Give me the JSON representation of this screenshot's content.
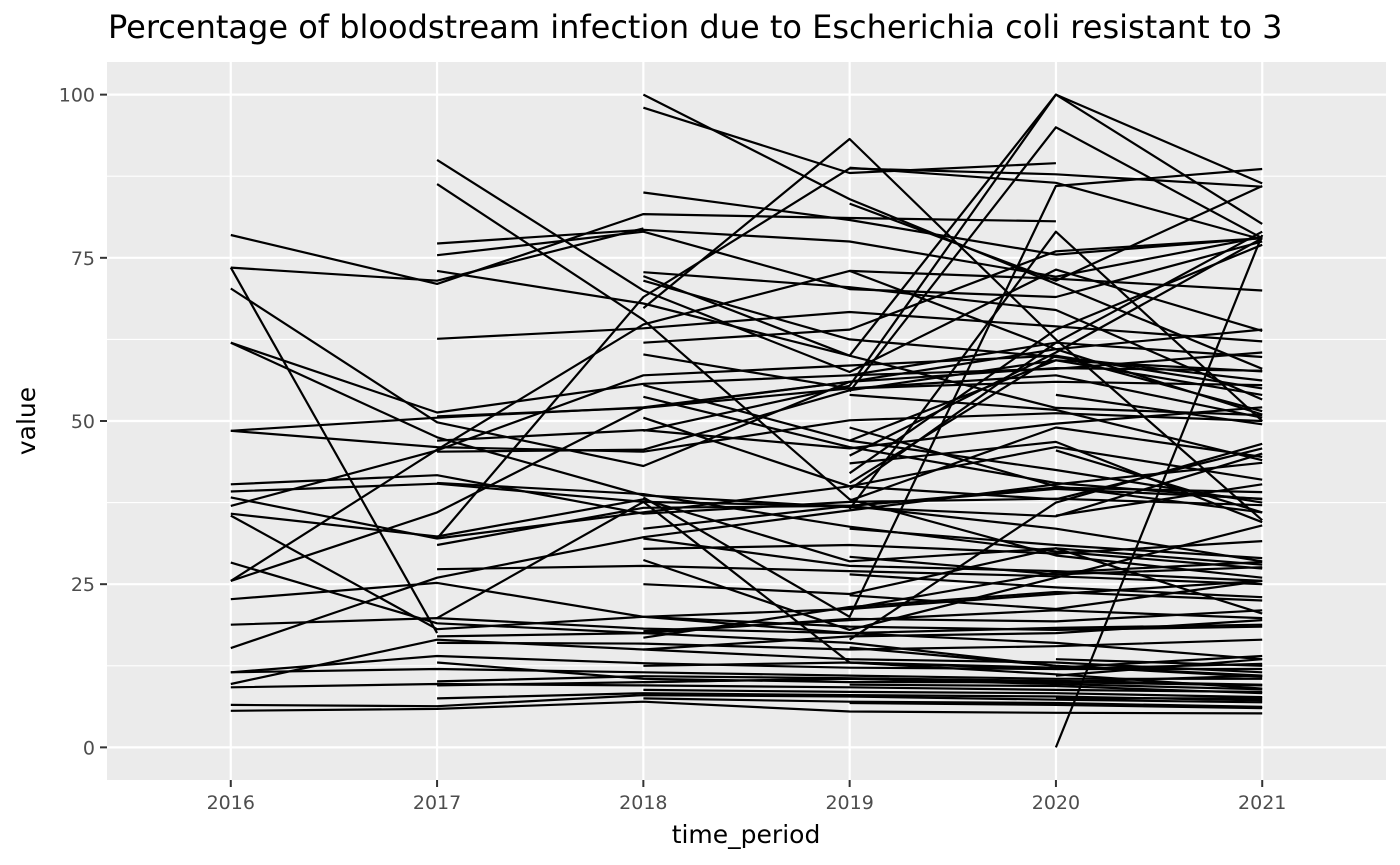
{
  "chart_data": {
    "type": "line",
    "title": "Percentage of bloodstream infection due to Escherichia coli resistant to 3",
    "xlabel": "time_period",
    "ylabel": "value",
    "x_ticks": [
      "2016",
      "2017",
      "2018",
      "2019",
      "2020",
      "2021"
    ],
    "y_ticks": [
      "0",
      "25",
      "50",
      "75",
      "100"
    ],
    "xlim": [
      2015.4,
      2021.6
    ],
    "ylim": [
      -5,
      105
    ],
    "grid": true,
    "legend": "none",
    "line_color": "#000000",
    "panel_background": "#ebebeb",
    "x": [
      2016,
      2017,
      2018,
      2019,
      2020,
      2021
    ],
    "series": [
      {
        "values": [
          78.5,
          71.0,
          81.7,
          81.1,
          80.6,
          null
        ]
      },
      {
        "values": [
          73.5,
          71.5,
          79.5,
          null,
          null,
          null
        ]
      },
      {
        "values": [
          73.5,
          17.5,
          null,
          null,
          null,
          null
        ]
      },
      {
        "values": [
          70.3,
          49.8,
          43.1,
          56.0,
          null,
          null
        ]
      },
      {
        "values": [
          62.0,
          51.3,
          55.7,
          57.0,
          62.0,
          59.8
        ]
      },
      {
        "values": [
          62.0,
          47.5,
          38.6,
          36.8,
          35.4,
          45.0
        ]
      },
      {
        "values": [
          48.5,
          50.5,
          52.1,
          56.0,
          58.1,
          57.7
        ]
      },
      {
        "values": [
          48.5,
          46.0,
          45.3,
          50.1,
          51.2,
          50.0
        ]
      },
      {
        "values": [
          40.3,
          41.7,
          35.8,
          37.6,
          38.1,
          37.1
        ]
      },
      {
        "values": [
          39.2,
          40.4,
          37.6,
          37.0,
          39.6,
          38.1
        ]
      },
      {
        "values": [
          38.3,
          32.0,
          36.0,
          40.0,
          46.0,
          41.0
        ]
      },
      {
        "values": [
          37.0,
          45.5,
          57.0,
          58.5,
          60.0,
          55.0
        ]
      },
      {
        "values": [
          35.8,
          32.3,
          38.0,
          28.5,
          30.5,
          28.0
        ]
      },
      {
        "values": [
          35.5,
          18.1,
          20.0,
          21.2,
          23.5,
          25.5
        ]
      },
      {
        "values": [
          28.3,
          19.0,
          17.5,
          16.0,
          12.5,
          11.0
        ]
      },
      {
        "values": [
          25.5,
          36.0,
          52.0,
          56.0,
          61.0,
          64.0
        ]
      },
      {
        "values": [
          25.5,
          45.6,
          64.8,
          73.0,
          71.8,
          70.0
        ]
      },
      {
        "values": [
          22.7,
          25.2,
          20.0,
          18.5,
          18.0,
          18.5
        ]
      },
      {
        "values": [
          18.8,
          19.8,
          18.2,
          17.5,
          16.0,
          13.5
        ]
      },
      {
        "values": [
          15.2,
          26.0,
          32.2,
          36.3,
          40.3,
          43.6
        ]
      },
      {
        "values": [
          11.5,
          14.0,
          12.9,
          12.2,
          12.0,
          12.8
        ]
      },
      {
        "values": [
          11.5,
          12.0,
          11.5,
          11.0,
          10.5,
          10.5
        ]
      },
      {
        "values": [
          9.7,
          16.5,
          15.0,
          17.0,
          17.5,
          19.5
        ]
      },
      {
        "values": [
          9.2,
          9.7,
          9.5,
          9.2,
          8.8,
          8.5
        ]
      },
      {
        "values": [
          6.5,
          6.3,
          8.0,
          7.8,
          7.3,
          6.9
        ]
      },
      {
        "values": [
          5.6,
          5.9,
          7.0,
          5.5,
          5.3,
          5.2
        ]
      },
      {
        "values": [
          null,
          90.0,
          70.0,
          57.5,
          73.2,
          63.8
        ]
      },
      {
        "values": [
          null,
          86.3,
          65.5,
          38.0,
          29.4,
          26.0
        ]
      },
      {
        "values": [
          null,
          77.2,
          79.3,
          77.5,
          72.1,
          78.2
        ]
      },
      {
        "values": [
          null,
          75.4,
          79.0,
          70.2,
          69.0,
          77.5
        ]
      },
      {
        "values": [
          null,
          73.0,
          68.0,
          60.0,
          52.0,
          50.9
        ]
      },
      {
        "values": [
          null,
          62.6,
          64.2,
          66.7,
          64.5,
          62.2
        ]
      },
      {
        "values": [
          null,
          50.7,
          52.0,
          55.0,
          56.0,
          55.5
        ]
      },
      {
        "values": [
          null,
          47.0,
          48.6,
          45.8,
          49.6,
          52.1
        ]
      },
      {
        "values": [
          null,
          45.3,
          45.6,
          54.7,
          59.3,
          57.6
        ]
      },
      {
        "values": [
          null,
          40.5,
          38.8,
          33.8,
          30.0,
          27.4
        ]
      },
      {
        "values": [
          null,
          32.0,
          69.0,
          88.7,
          87.8,
          85.9
        ]
      },
      {
        "values": [
          null,
          31.0,
          36.7,
          37.0,
          39.8,
          39.1
        ]
      },
      {
        "values": [
          null,
          27.3,
          27.8,
          27.0,
          26.2,
          25.0
        ]
      },
      {
        "values": [
          null,
          19.8,
          37.6,
          13.0,
          12.0,
          12.0
        ]
      },
      {
        "values": [
          null,
          17.0,
          17.5,
          19.7,
          19.3,
          21.0
        ]
      },
      {
        "values": [
          null,
          16.0,
          15.9,
          15.0,
          15.5,
          16.5
        ]
      },
      {
        "values": [
          null,
          13.0,
          10.5,
          10.0,
          10.0,
          11.0
        ]
      },
      {
        "values": [
          null,
          10.1,
          10.9,
          10.6,
          10.2,
          9.6
        ]
      },
      {
        "values": [
          null,
          9.5,
          10.0,
          10.5,
          10.0,
          9.5
        ]
      },
      {
        "values": [
          null,
          7.5,
          8.3,
          8.0,
          7.8,
          7.2
        ]
      },
      {
        "values": [
          null,
          null,
          100.0,
          84.0,
          71.0,
          58.0
        ]
      },
      {
        "values": [
          null,
          null,
          98.0,
          88.0,
          89.5,
          null
        ]
      },
      {
        "values": [
          null,
          null,
          85.0,
          80.8,
          75.5,
          78.0
        ]
      },
      {
        "values": [
          null,
          null,
          72.8,
          70.5,
          67.0,
          53.3
        ]
      },
      {
        "values": [
          null,
          null,
          72.2,
          60.0,
          100.0,
          86.4
        ]
      },
      {
        "values": [
          null,
          null,
          71.5,
          62.5,
          59.8,
          56.2
        ]
      },
      {
        "values": [
          null,
          null,
          67.3,
          93.2,
          62.5,
          34.8
        ]
      },
      {
        "values": [
          null,
          null,
          62.0,
          64.0,
          76.0,
          78.0
        ]
      },
      {
        "values": [
          null,
          null,
          60.2,
          55.0,
          57.0,
          50.5
        ]
      },
      {
        "values": [
          null,
          null,
          55.5,
          47.0,
          42.5,
          37.5
        ]
      },
      {
        "values": [
          null,
          null,
          53.7,
          46.0,
          40.5,
          38.0
        ]
      },
      {
        "values": [
          null,
          null,
          50.5,
          40.0,
          38.0,
          45.8
        ]
      },
      {
        "values": [
          null,
          null,
          48.5,
          55.4,
          100.0,
          80.2
        ]
      },
      {
        "values": [
          null,
          null,
          38.3,
          20.0,
          86.0,
          88.6
        ]
      },
      {
        "values": [
          null,
          null,
          33.5,
          37.0,
          33.5,
          28.5
        ]
      },
      {
        "values": [
          null,
          null,
          32.0,
          27.8,
          27.0,
          25.5
        ]
      },
      {
        "values": [
          null,
          null,
          30.4,
          31.0,
          29.7,
          31.6
        ]
      },
      {
        "values": [
          null,
          null,
          28.7,
          18.0,
          26.0,
          34.0
        ]
      },
      {
        "values": [
          null,
          null,
          25.0,
          23.5,
          30.5,
          20.5
        ]
      },
      {
        "values": [
          null,
          null,
          20.0,
          17.5,
          18.3,
          18.8
        ]
      },
      {
        "values": [
          null,
          null,
          17.8,
          19.5,
          21.0,
          19.8
        ]
      },
      {
        "values": [
          null,
          null,
          16.8,
          21.5,
          23.8,
          22.5
        ]
      },
      {
        "values": [
          null,
          null,
          15.0,
          13.5,
          13.0,
          11.5
        ]
      },
      {
        "values": [
          null,
          null,
          12.5,
          13.0,
          12.2,
          14.0
        ]
      },
      {
        "values": [
          null,
          null,
          10.0,
          10.5,
          9.7,
          8.9
        ]
      },
      {
        "values": [
          null,
          null,
          8.8,
          8.5,
          8.3,
          7.7
        ]
      },
      {
        "values": [
          null,
          null,
          7.5,
          7.0,
          6.8,
          6.2
        ]
      },
      {
        "values": [
          null,
          null,
          null,
          88.8,
          86.5,
          77.8
        ]
      },
      {
        "values": [
          null,
          null,
          null,
          83.3,
          71.5,
          86.0
        ]
      },
      {
        "values": [
          null,
          null,
          null,
          73.0,
          61.0,
          51.0
        ]
      },
      {
        "values": [
          null,
          null,
          null,
          57.0,
          58.0,
          60.5
        ]
      },
      {
        "values": [
          null,
          null,
          null,
          54.5,
          95.0,
          78.0
        ]
      },
      {
        "values": [
          null,
          null,
          null,
          54.0,
          51.7,
          44.0
        ]
      },
      {
        "values": [
          null,
          null,
          null,
          49.0,
          40.0,
          36.0
        ]
      },
      {
        "values": [
          null,
          null,
          null,
          47.0,
          59.3,
          54.0
        ]
      },
      {
        "values": [
          null,
          null,
          null,
          44.7,
          60.5,
          78.0
        ]
      },
      {
        "values": [
          null,
          null,
          null,
          43.5,
          46.8,
          34.5
        ]
      },
      {
        "values": [
          null,
          null,
          null,
          42.0,
          64.0,
          77.0
        ]
      },
      {
        "values": [
          null,
          null,
          null,
          40.5,
          60.0,
          51.5
        ]
      },
      {
        "values": [
          null,
          null,
          null,
          39.5,
          62.0,
          79.0
        ]
      },
      {
        "values": [
          null,
          null,
          null,
          37.8,
          49.0,
          44.5
        ]
      },
      {
        "values": [
          null,
          null,
          null,
          36.5,
          79.0,
          50.0
        ]
      },
      {
        "values": [
          null,
          null,
          null,
          33.5,
          31.0,
          29.0
        ]
      },
      {
        "values": [
          null,
          null,
          null,
          29.2,
          26.5,
          27.6
        ]
      },
      {
        "values": [
          null,
          null,
          null,
          26.5,
          24.5,
          23.0
        ]
      },
      {
        "values": [
          null,
          null,
          null,
          23.3,
          21.2,
          25.5
        ]
      },
      {
        "values": [
          null,
          null,
          null,
          21.3,
          26.8,
          28.4
        ]
      },
      {
        "values": [
          null,
          null,
          null,
          16.5,
          37.5,
          46.5
        ]
      },
      {
        "values": [
          null,
          null,
          null,
          15.3,
          12.5,
          10.8
        ]
      },
      {
        "values": [
          null,
          null,
          null,
          13.0,
          11.2,
          9.0
        ]
      },
      {
        "values": [
          null,
          null,
          null,
          9.6,
          9.4,
          8.3
        ]
      },
      {
        "values": [
          null,
          null,
          null,
          6.8,
          6.5,
          6.0
        ]
      },
      {
        "values": [
          null,
          null,
          null,
          null,
          0.0,
          78.5
        ]
      },
      {
        "values": [
          null,
          null,
          null,
          null,
          54.0,
          49.5
        ]
      },
      {
        "values": [
          null,
          null,
          null,
          null,
          45.5,
          36.0
        ]
      },
      {
        "values": [
          null,
          null,
          null,
          null,
          35.5,
          40.3
        ]
      },
      {
        "values": [
          null,
          null,
          null,
          null,
          13.5,
          12.5
        ]
      },
      {
        "values": [
          null,
          null,
          null,
          null,
          11.0,
          13.5
        ]
      },
      {
        "values": [
          null,
          null,
          null,
          null,
          7.5,
          7.5
        ]
      }
    ]
  }
}
